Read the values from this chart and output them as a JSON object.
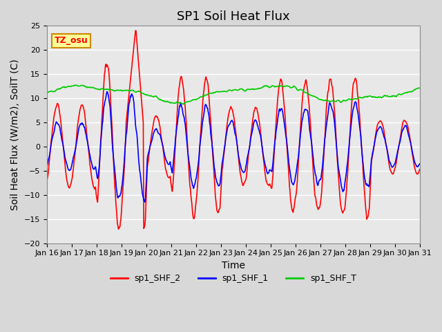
{
  "title": "SP1 Soil Heat Flux",
  "xlabel": "Time",
  "ylabel": "Soil Heat Flux (W/m2), SoilT (C)",
  "ylim": [
    -20,
    25
  ],
  "yticks": [
    -20,
    -15,
    -10,
    -5,
    0,
    5,
    10,
    15,
    20,
    25
  ],
  "x_tick_labels": [
    "Jan 16",
    "Jan 17",
    "Jan 18",
    "Jan 19",
    "Jan 20",
    "Jan 21",
    "Jan 22",
    "Jan 23",
    "Jan 24",
    "Jan 25",
    "Jan 26",
    "Jan 27",
    "Jan 28",
    "Jan 29",
    "Jan 30",
    "Jan 31"
  ],
  "legend_labels": [
    "sp1_SHF_2",
    "sp1_SHF_1",
    "sp1_SHF_T"
  ],
  "colors": {
    "shf2": "#ff0000",
    "shf1": "#0000ff",
    "shft": "#00cc00"
  },
  "annotation_text": "TZ_osu",
  "annotation_bg": "#ffff99",
  "annotation_border": "#cc8800",
  "plot_bg": "#e8e8e8",
  "title_fontsize": 13,
  "axis_fontsize": 10,
  "tick_fontsize": 8,
  "legend_fontsize": 9,
  "linewidth": 1.2
}
